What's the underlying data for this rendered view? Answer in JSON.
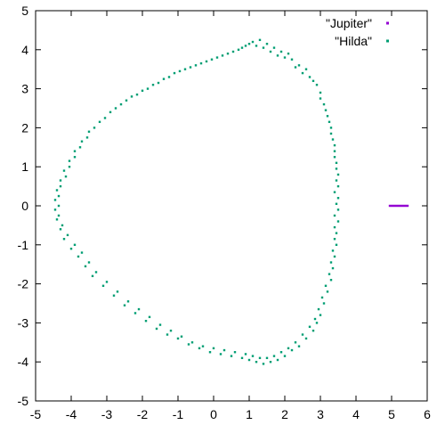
{
  "chart_data": {
    "type": "scatter",
    "title": "",
    "xlabel": "",
    "ylabel": "",
    "xlim": [
      -5,
      6
    ],
    "ylim": [
      -5,
      5
    ],
    "xticks": [
      -5,
      -4,
      -3,
      -2,
      -1,
      0,
      1,
      2,
      3,
      4,
      5,
      6
    ],
    "yticks": [
      -5,
      -4,
      -3,
      -2,
      -1,
      0,
      1,
      2,
      3,
      4,
      5
    ],
    "grid": false,
    "legend_position": "top-right",
    "series": [
      {
        "name": "\"Jupiter\"",
        "color": "#9400d3",
        "points": [
          [
            4.95,
            0.0
          ],
          [
            5.0,
            0.0
          ],
          [
            5.05,
            0.0
          ],
          [
            5.1,
            0.0
          ],
          [
            5.15,
            0.0
          ],
          [
            5.2,
            0.0
          ],
          [
            5.25,
            0.0
          ],
          [
            5.3,
            0.0
          ],
          [
            5.35,
            0.0
          ],
          [
            5.4,
            0.0
          ],
          [
            5.45,
            0.0
          ]
        ]
      },
      {
        "name": "\"Hilda\"",
        "color": "#009e73",
        "points": [
          [
            1.1,
            4.2
          ],
          [
            1.3,
            4.25
          ],
          [
            1.5,
            4.15
          ],
          [
            1.7,
            4.05
          ],
          [
            1.9,
            3.95
          ],
          [
            2.1,
            3.9
          ],
          [
            2.2,
            3.75
          ],
          [
            2.4,
            3.6
          ],
          [
            2.6,
            3.5
          ],
          [
            2.7,
            3.3
          ],
          [
            2.9,
            3.1
          ],
          [
            3.0,
            2.9
          ],
          [
            3.1,
            2.6
          ],
          [
            3.2,
            2.3
          ],
          [
            3.3,
            2.0
          ],
          [
            3.35,
            1.7
          ],
          [
            3.4,
            1.4
          ],
          [
            3.45,
            1.1
          ],
          [
            3.5,
            0.8
          ],
          [
            3.5,
            0.5
          ],
          [
            3.5,
            0.2
          ],
          [
            3.5,
            -0.1
          ],
          [
            3.5,
            -0.4
          ],
          [
            3.45,
            -0.7
          ],
          [
            3.45,
            -1.0
          ],
          [
            3.4,
            -1.3
          ],
          [
            3.35,
            -1.6
          ],
          [
            3.3,
            -1.9
          ],
          [
            3.2,
            -2.2
          ],
          [
            3.1,
            -2.5
          ],
          [
            3.0,
            -2.8
          ],
          [
            2.9,
            -3.0
          ],
          [
            2.8,
            -3.2
          ],
          [
            2.6,
            -3.4
          ],
          [
            2.4,
            -3.6
          ],
          [
            2.2,
            -3.7
          ],
          [
            2.0,
            -3.85
          ],
          [
            1.8,
            -3.95
          ],
          [
            1.6,
            -4.0
          ],
          [
            1.4,
            -4.05
          ],
          [
            1.2,
            -4.0
          ],
          [
            1.0,
            -3.95
          ],
          [
            0.8,
            -3.9
          ],
          [
            0.5,
            -3.85
          ],
          [
            0.2,
            -3.8
          ],
          [
            -0.1,
            -3.75
          ],
          [
            -0.4,
            -3.65
          ],
          [
            -0.7,
            -3.55
          ],
          [
            -1.0,
            -3.4
          ],
          [
            -1.3,
            -3.3
          ],
          [
            -1.6,
            -3.15
          ],
          [
            -1.9,
            -2.95
          ],
          [
            -2.2,
            -2.75
          ],
          [
            -2.5,
            -2.55
          ],
          [
            -2.8,
            -2.3
          ],
          [
            -3.1,
            -2.05
          ],
          [
            -3.4,
            -1.8
          ],
          [
            -3.6,
            -1.55
          ],
          [
            -3.8,
            -1.3
          ],
          [
            -4.0,
            -1.1
          ],
          [
            -4.2,
            -0.85
          ],
          [
            -4.3,
            -0.6
          ],
          [
            -4.4,
            -0.35
          ],
          [
            -4.45,
            -0.1
          ],
          [
            -4.45,
            0.15
          ],
          [
            -4.4,
            0.4
          ],
          [
            -4.3,
            0.65
          ],
          [
            -4.2,
            0.9
          ],
          [
            -4.05,
            1.15
          ],
          [
            -3.9,
            1.4
          ],
          [
            -3.7,
            1.65
          ],
          [
            -3.5,
            1.9
          ],
          [
            -3.2,
            2.15
          ],
          [
            -2.9,
            2.4
          ],
          [
            -2.6,
            2.6
          ],
          [
            -2.3,
            2.8
          ],
          [
            -2.0,
            2.95
          ],
          [
            -1.7,
            3.1
          ],
          [
            -1.4,
            3.25
          ],
          [
            -1.1,
            3.4
          ],
          [
            -0.8,
            3.5
          ],
          [
            -0.5,
            3.6
          ],
          [
            -0.2,
            3.7
          ],
          [
            0.1,
            3.8
          ],
          [
            0.4,
            3.9
          ],
          [
            0.7,
            4.0
          ],
          [
            0.9,
            4.1
          ],
          [
            1.2,
            4.1
          ],
          [
            1.4,
            4.05
          ],
          [
            1.6,
            3.95
          ],
          [
            1.8,
            3.85
          ],
          [
            2.0,
            3.8
          ],
          [
            2.3,
            3.55
          ],
          [
            2.5,
            3.4
          ],
          [
            2.8,
            3.2
          ],
          [
            3.0,
            2.75
          ],
          [
            3.15,
            2.45
          ],
          [
            3.25,
            2.15
          ],
          [
            3.3,
            1.85
          ],
          [
            3.4,
            1.55
          ],
          [
            3.4,
            1.25
          ],
          [
            3.45,
            0.95
          ],
          [
            3.45,
            0.65
          ],
          [
            3.4,
            0.35
          ],
          [
            3.45,
            0.05
          ],
          [
            3.4,
            -0.25
          ],
          [
            3.4,
            -0.55
          ],
          [
            3.4,
            -0.85
          ],
          [
            3.35,
            -1.15
          ],
          [
            3.3,
            -1.45
          ],
          [
            3.25,
            -1.75
          ],
          [
            3.15,
            -2.05
          ],
          [
            3.05,
            -2.35
          ],
          [
            2.95,
            -2.65
          ],
          [
            2.85,
            -2.9
          ],
          [
            2.7,
            -3.1
          ],
          [
            2.5,
            -3.3
          ],
          [
            2.3,
            -3.5
          ],
          [
            2.1,
            -3.65
          ],
          [
            1.9,
            -3.75
          ],
          [
            1.7,
            -3.85
          ],
          [
            1.5,
            -3.9
          ],
          [
            1.3,
            -3.9
          ],
          [
            1.1,
            -3.85
          ],
          [
            0.9,
            -3.8
          ],
          [
            0.6,
            -3.75
          ],
          [
            0.3,
            -3.7
          ],
          [
            0.0,
            -3.65
          ],
          [
            -0.3,
            -3.6
          ],
          [
            -0.6,
            -3.5
          ],
          [
            -0.9,
            -3.35
          ],
          [
            -1.2,
            -3.2
          ],
          [
            -1.5,
            -3.05
          ],
          [
            -1.8,
            -2.85
          ],
          [
            -2.1,
            -2.65
          ],
          [
            -2.4,
            -2.45
          ],
          [
            -2.7,
            -2.2
          ],
          [
            -3.0,
            -1.95
          ],
          [
            -3.3,
            -1.7
          ],
          [
            -3.5,
            -1.45
          ],
          [
            -3.7,
            -1.2
          ],
          [
            -3.9,
            -1.0
          ],
          [
            -4.1,
            -0.75
          ],
          [
            -4.25,
            -0.5
          ],
          [
            -4.35,
            -0.25
          ],
          [
            -4.35,
            0.0
          ],
          [
            -4.35,
            0.25
          ],
          [
            -4.3,
            0.5
          ],
          [
            -4.15,
            0.75
          ],
          [
            -4.05,
            1.0
          ],
          [
            -3.9,
            1.25
          ],
          [
            -3.75,
            1.5
          ],
          [
            -3.55,
            1.75
          ],
          [
            -3.35,
            2.0
          ],
          [
            -3.05,
            2.25
          ],
          [
            -2.75,
            2.5
          ],
          [
            -2.45,
            2.7
          ],
          [
            -2.15,
            2.85
          ],
          [
            -1.85,
            3.0
          ],
          [
            -1.55,
            3.15
          ],
          [
            -1.25,
            3.3
          ],
          [
            -0.95,
            3.45
          ],
          [
            -0.65,
            3.55
          ],
          [
            -0.35,
            3.65
          ],
          [
            -0.05,
            3.75
          ],
          [
            0.25,
            3.85
          ],
          [
            0.55,
            3.95
          ],
          [
            0.8,
            4.05
          ],
          [
            1.0,
            4.15
          ]
        ]
      }
    ]
  }
}
